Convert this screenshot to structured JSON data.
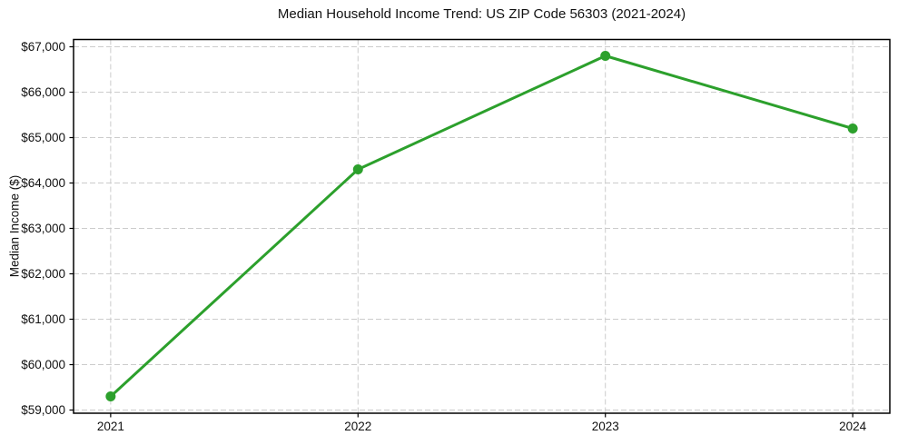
{
  "chart_data": {
    "type": "line",
    "title": "Median Household Income Trend: US ZIP Code 56303 (2021-2024)",
    "xlabel": "",
    "ylabel": "Median Income ($)",
    "categories": [
      "2021",
      "2022",
      "2023",
      "2024"
    ],
    "x": [
      2021,
      2022,
      2023,
      2024
    ],
    "values": [
      59300,
      64300,
      66800,
      65200
    ],
    "xlim": [
      2020.85,
      2024.15
    ],
    "ylim": [
      58930,
      67160
    ],
    "y_tick_values": [
      59000,
      60000,
      61000,
      62000,
      63000,
      64000,
      65000,
      66000,
      67000
    ],
    "y_tick_labels": [
      "$59,000",
      "$60,000",
      "$61,000",
      "$62,000",
      "$63,000",
      "$64,000",
      "$65,000",
      "$66,000",
      "$67,000"
    ],
    "x_tick_labels": [
      "2021",
      "2022",
      "2023",
      "2024"
    ],
    "grid": true,
    "grid_style": "dashed",
    "legend": "none",
    "colors": {
      "line": "#2ca02c",
      "marker": "#2ca02c",
      "grid": "#cccccc",
      "axis": "#000000",
      "text": "#111111",
      "background": "#ffffff"
    }
  }
}
